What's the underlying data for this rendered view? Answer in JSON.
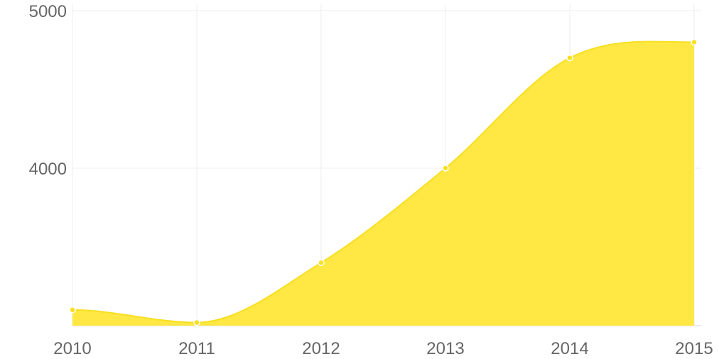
{
  "chart_data": {
    "type": "area",
    "title": "",
    "xlabel": "",
    "ylabel": "",
    "categories": [
      "2010",
      "2011",
      "2012",
      "2013",
      "2014",
      "2015"
    ],
    "series": [
      {
        "values": [
          3100,
          3020,
          3400,
          4000,
          4700,
          4800
        ]
      }
    ],
    "ylim": [
      3000,
      5000
    ],
    "yticks": [
      "4000",
      "5000"
    ],
    "grid": true,
    "legend": "none",
    "colors": {
      "fill": "#ffe843",
      "line": "#f7df22",
      "point_stroke": "#ffffff",
      "point_fill": "#f7df22",
      "tick_text": "#666666"
    }
  }
}
